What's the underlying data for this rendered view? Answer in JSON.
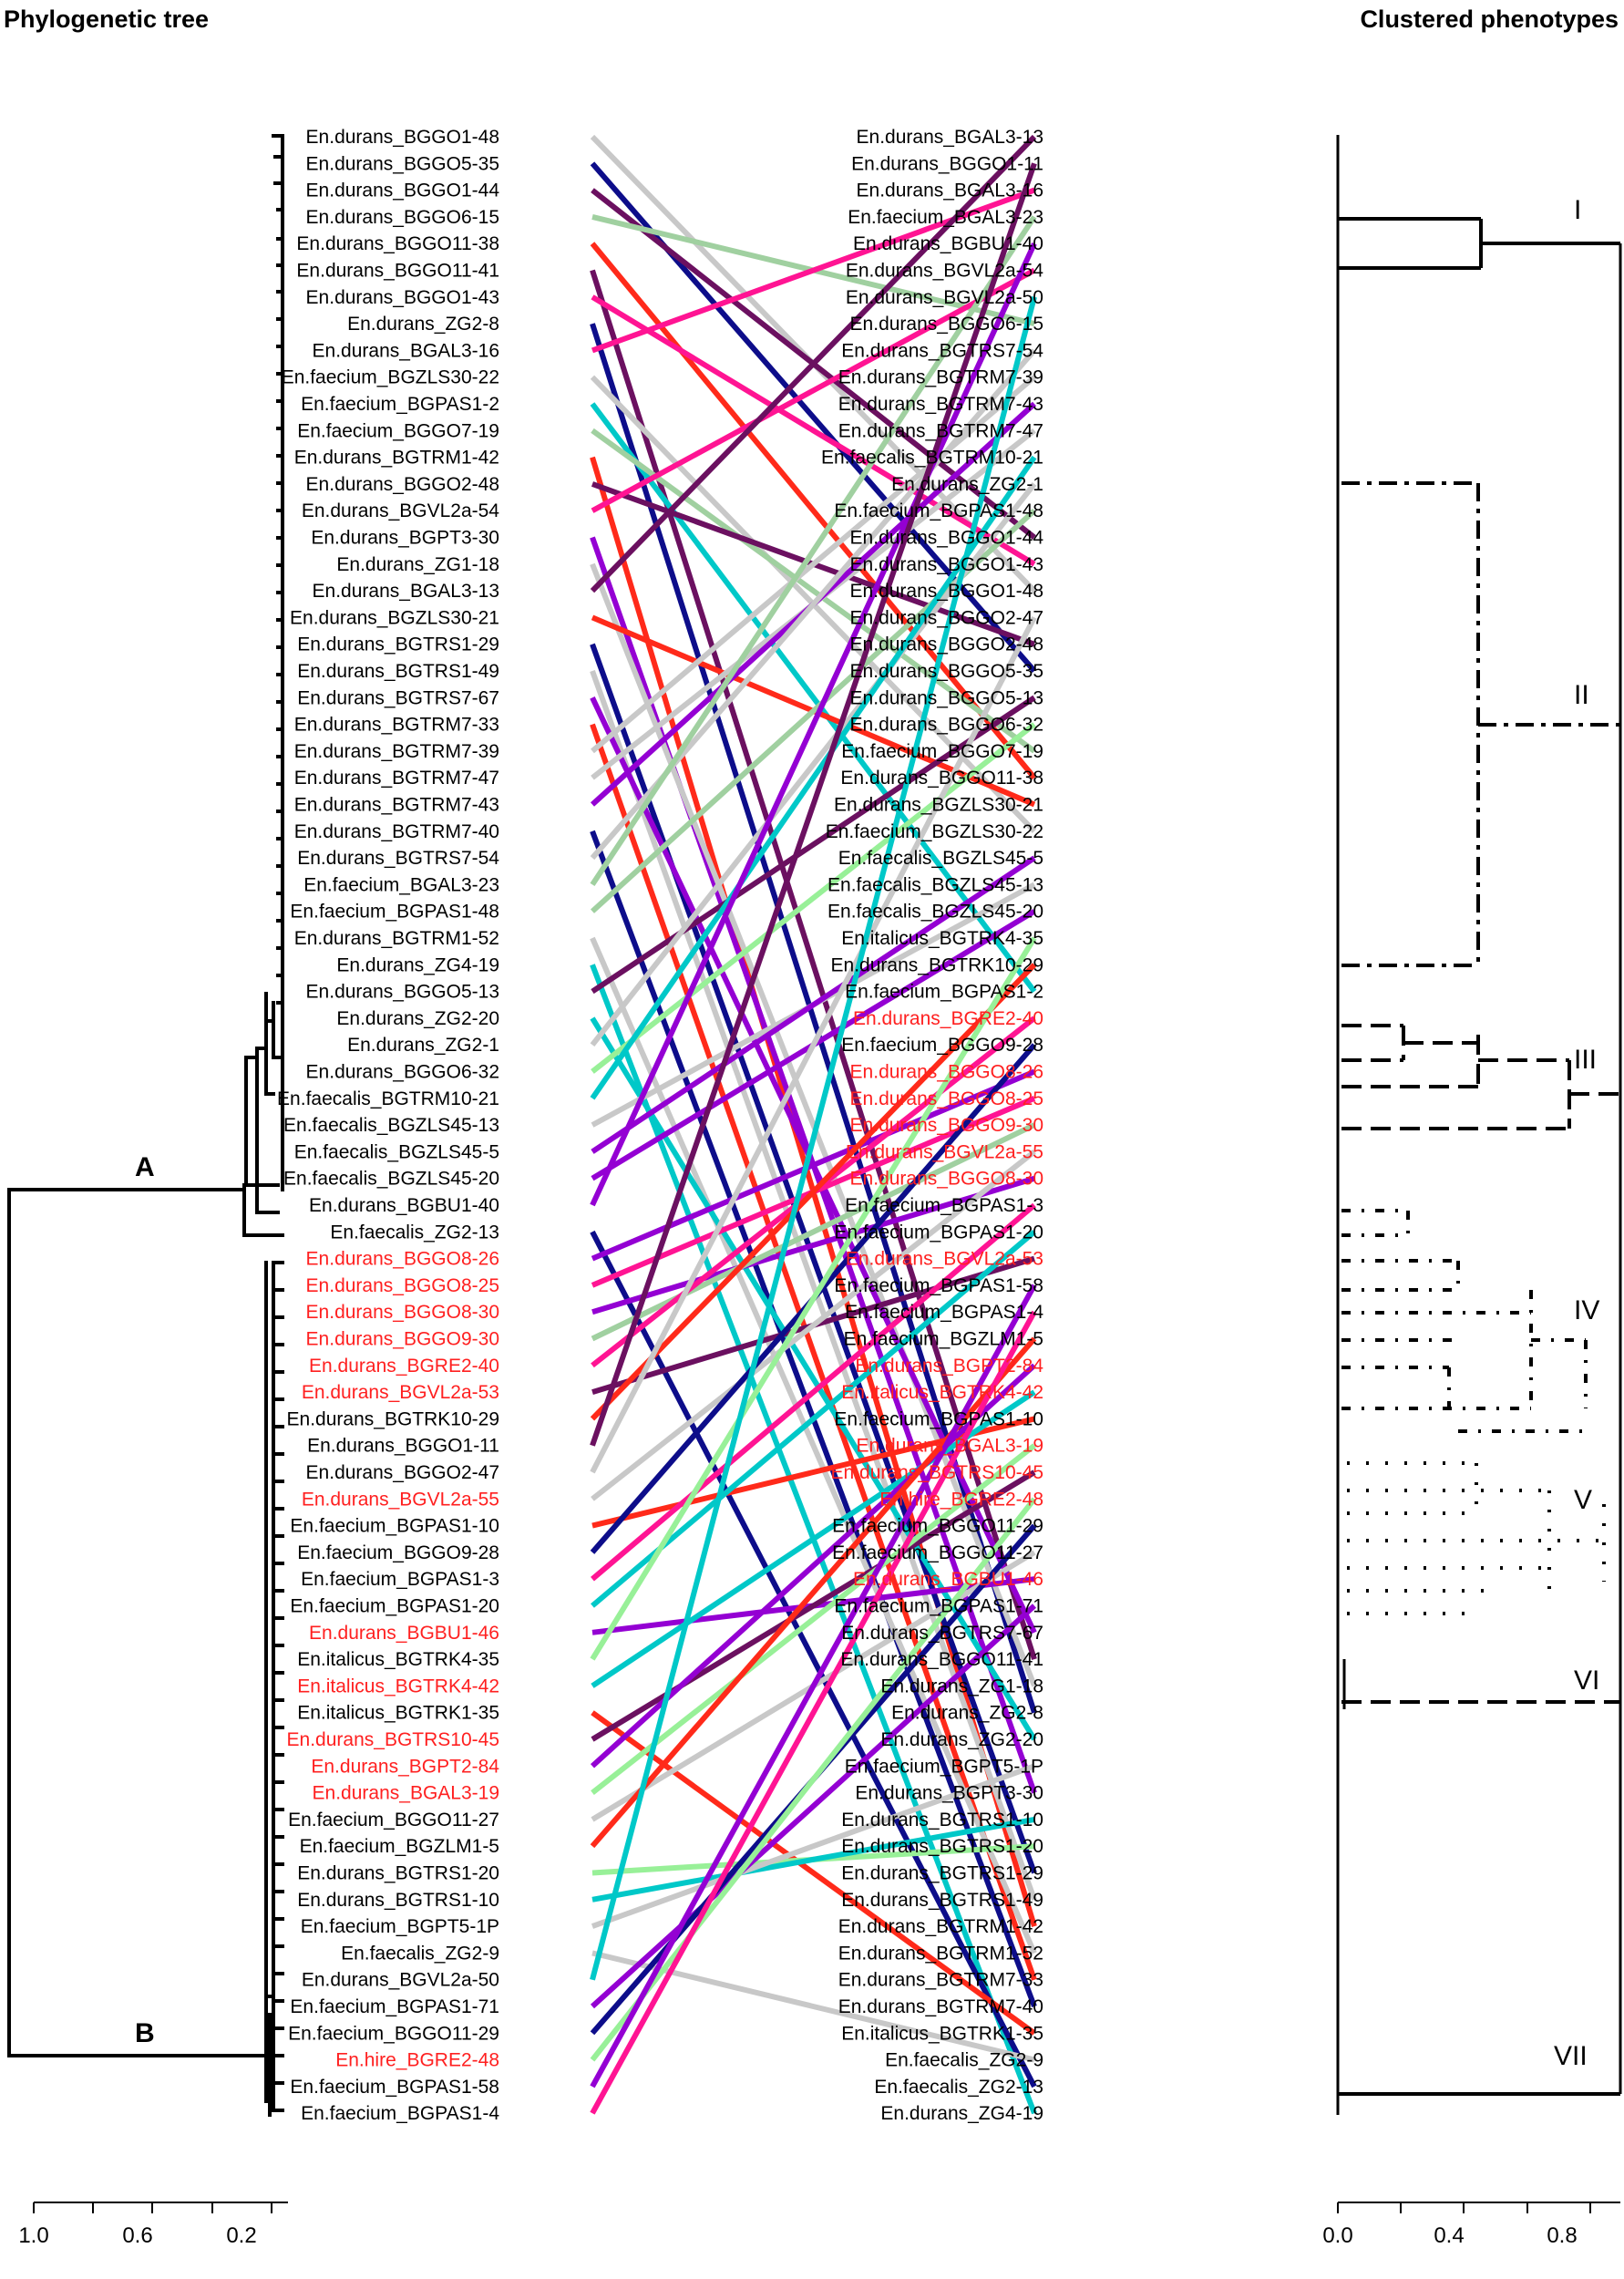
{
  "titles": {
    "left": "Phylogenetic tree",
    "right": "Clustered phenotypes"
  },
  "colors": {
    "normal": "#000000",
    "highlight": "#ff2020",
    "lines": [
      "#0d0d8a",
      "#a0d0a0",
      "#6b1060",
      "#00c8c8",
      "#ff1493",
      "#9400d3",
      "#98f098",
      "#ff2a1a",
      "#c8c8c8"
    ]
  },
  "left_tree": {
    "leaves": [
      {
        "label": "En.durans_BGGO1-48",
        "red": false
      },
      {
        "label": "En.durans_BGGO5-35",
        "red": false
      },
      {
        "label": "En.durans_BGGO1-44",
        "red": false
      },
      {
        "label": "En.durans_BGGO6-15",
        "red": false
      },
      {
        "label": "En.durans_BGGO11-38",
        "red": false
      },
      {
        "label": "En.durans_BGGO11-41",
        "red": false
      },
      {
        "label": "En.durans_BGGO1-43",
        "red": false
      },
      {
        "label": "En.durans_ZG2-8",
        "red": false
      },
      {
        "label": "En.durans_BGAL3-16",
        "red": false
      },
      {
        "label": "En.faecium_BGZLS30-22",
        "red": false
      },
      {
        "label": "En.faecium_BGPAS1-2",
        "red": false
      },
      {
        "label": "En.faecium_BGGO7-19",
        "red": false
      },
      {
        "label": "En.durans_BGTRM1-42",
        "red": false
      },
      {
        "label": "En.durans_BGGO2-48",
        "red": false
      },
      {
        "label": "En.durans_BGVL2a-54",
        "red": false
      },
      {
        "label": "En.durans_BGPT3-30",
        "red": false
      },
      {
        "label": "En.durans_ZG1-18",
        "red": false
      },
      {
        "label": "En.durans_BGAL3-13",
        "red": false
      },
      {
        "label": "En.durans_BGZLS30-21",
        "red": false
      },
      {
        "label": "En.durans_BGTRS1-29",
        "red": false
      },
      {
        "label": "En.durans_BGTRS1-49",
        "red": false
      },
      {
        "label": "En.durans_BGTRS7-67",
        "red": false
      },
      {
        "label": "En.durans_BGTRM7-33",
        "red": false
      },
      {
        "label": "En.durans_BGTRM7-39",
        "red": false
      },
      {
        "label": "En.durans_BGTRM7-47",
        "red": false
      },
      {
        "label": "En.durans_BGTRM7-43",
        "red": false
      },
      {
        "label": "En.durans_BGTRM7-40",
        "red": false
      },
      {
        "label": "En.durans_BGTRS7-54",
        "red": false
      },
      {
        "label": "En.faecium_BGAL3-23",
        "red": false
      },
      {
        "label": "En.faecium_BGPAS1-48",
        "red": false
      },
      {
        "label": "En.durans_BGTRM1-52",
        "red": false
      },
      {
        "label": "En.durans_ZG4-19",
        "red": false
      },
      {
        "label": "En.durans_BGGO5-13",
        "red": false
      },
      {
        "label": "En.durans_ZG2-20",
        "red": false
      },
      {
        "label": "En.durans_ZG2-1",
        "red": false
      },
      {
        "label": "En.durans_BGGO6-32",
        "red": false
      },
      {
        "label": "En.faecalis_BGTRM10-21",
        "red": false
      },
      {
        "label": "En.faecalis_BGZLS45-13",
        "red": false
      },
      {
        "label": "En.faecalis_BGZLS45-5",
        "red": false
      },
      {
        "label": "En.faecalis_BGZLS45-20",
        "red": false
      },
      {
        "label": "En.durans_BGBU1-40",
        "red": false
      },
      {
        "label": "En.faecalis_ZG2-13",
        "red": false
      },
      {
        "label": "En.durans_BGGO8-26",
        "red": true
      },
      {
        "label": "En.durans_BGGO8-25",
        "red": true
      },
      {
        "label": "En.durans_BGGO8-30",
        "red": true
      },
      {
        "label": "En.durans_BGGO9-30",
        "red": true
      },
      {
        "label": "En.durans_BGRE2-40",
        "red": true
      },
      {
        "label": "En.durans_BGVL2a-53",
        "red": true
      },
      {
        "label": "En.durans_BGTRK10-29",
        "red": false
      },
      {
        "label": "En.durans_BGGO1-11",
        "red": false
      },
      {
        "label": "En.durans_BGGO2-47",
        "red": false
      },
      {
        "label": "En.durans_BGVL2a-55",
        "red": true
      },
      {
        "label": "En.faecium_BGPAS1-10",
        "red": false
      },
      {
        "label": "En.faecium_BGGO9-28",
        "red": false
      },
      {
        "label": "En.faecium_BGPAS1-3",
        "red": false
      },
      {
        "label": "En.faecium_BGPAS1-20",
        "red": false
      },
      {
        "label": "En.durans_BGBU1-46",
        "red": true
      },
      {
        "label": "En.italicus_BGTRK4-35",
        "red": false
      },
      {
        "label": "En.italicus_BGTRK4-42",
        "red": true
      },
      {
        "label": "En.italicus_BGTRK1-35",
        "red": false
      },
      {
        "label": "En.durans_BGTRS10-45",
        "red": true
      },
      {
        "label": "En.durans_BGPT2-84",
        "red": true
      },
      {
        "label": "En.durans_BGAL3-19",
        "red": true
      },
      {
        "label": "En.faecium_BGGO11-27",
        "red": false
      },
      {
        "label": "En.faecium_BGZLM1-5",
        "red": false
      },
      {
        "label": "En.durans_BGTRS1-20",
        "red": false
      },
      {
        "label": "En.durans_BGTRS1-10",
        "red": false
      },
      {
        "label": "En.faecium_BGPT5-1P",
        "red": false
      },
      {
        "label": "En.faecalis_ZG2-9",
        "red": false
      },
      {
        "label": "En.durans_BGVL2a-50",
        "red": false
      },
      {
        "label": "En.faecium_BGPAS1-71",
        "red": false
      },
      {
        "label": "En.faecium_BGGO11-29",
        "red": false
      },
      {
        "label": "En.hire_BGRE2-48",
        "red": true
      },
      {
        "label": "En.faecium_BGPAS1-58",
        "red": false
      },
      {
        "label": "En.faecium_BGPAS1-4",
        "red": false
      }
    ],
    "clade_labels": [
      "A",
      "B"
    ],
    "axis_ticks": [
      "1.0",
      "0.6",
      "0.2"
    ]
  },
  "right_tree": {
    "leaves": [
      {
        "label": "En.durans_BGAL3-13",
        "red": false
      },
      {
        "label": "En.durans_BGGO1-11",
        "red": false
      },
      {
        "label": "En.durans_BGAL3-16",
        "red": false
      },
      {
        "label": "En.faecium_BGAL3-23",
        "red": false
      },
      {
        "label": "En.durans_BGBU1-40",
        "red": false
      },
      {
        "label": "En.durans_BGVL2a-54",
        "red": false
      },
      {
        "label": "En.durans_BGVL2a-50",
        "red": false
      },
      {
        "label": "En.durans_BGGO6-15",
        "red": false
      },
      {
        "label": "En.durans_BGTRS7-54",
        "red": false
      },
      {
        "label": "En.durans_BGTRM7-39",
        "red": false
      },
      {
        "label": "En.durans_BGTRM7-43",
        "red": false
      },
      {
        "label": "En.durans_BGTRM7-47",
        "red": false
      },
      {
        "label": "En.faecalis_BGTRM10-21",
        "red": false
      },
      {
        "label": "En.durans_ZG2-1",
        "red": false
      },
      {
        "label": "En.faecium_BGPAS1-48",
        "red": false
      },
      {
        "label": "En.durans_BGGO1-44",
        "red": false
      },
      {
        "label": "En.durans_BGGO1-43",
        "red": false
      },
      {
        "label": "En.durans_BGGO1-48",
        "red": false
      },
      {
        "label": "En.durans_BGGO2-47",
        "red": false
      },
      {
        "label": "En.durans_BGGO2-48",
        "red": false
      },
      {
        "label": "En.durans_BGGO5-35",
        "red": false
      },
      {
        "label": "En.durans_BGGO5-13",
        "red": false
      },
      {
        "label": "En.durans_BGGO6-32",
        "red": false
      },
      {
        "label": "En.faecium_BGGO7-19",
        "red": false
      },
      {
        "label": "En.durans_BGGO11-38",
        "red": false
      },
      {
        "label": "En.durans_BGZLS30-21",
        "red": false
      },
      {
        "label": "En.faecium_BGZLS30-22",
        "red": false
      },
      {
        "label": "En.faecalis_BGZLS45-5",
        "red": false
      },
      {
        "label": "En.faecalis_BGZLS45-13",
        "red": false
      },
      {
        "label": "En.faecalis_BGZLS45-20",
        "red": false
      },
      {
        "label": "En.italicus_BGTRK4-35",
        "red": false
      },
      {
        "label": "En.durans_BGTRK10-29",
        "red": false
      },
      {
        "label": "En.faecium_BGPAS1-2",
        "red": false
      },
      {
        "label": "En.durans_BGRE2-40",
        "red": true
      },
      {
        "label": "En.faecium_BGGO9-28",
        "red": false
      },
      {
        "label": "En.durans_BGGO8-26",
        "red": true
      },
      {
        "label": "En.durans_BGGO8-25",
        "red": true
      },
      {
        "label": "En.durans_BGGO9-30",
        "red": true
      },
      {
        "label": "En.durans_BGVL2a-55",
        "red": true
      },
      {
        "label": "En.durans_BGGO8-30",
        "red": true
      },
      {
        "label": "En.faecium_BGPAS1-3",
        "red": false
      },
      {
        "label": "En.faecium_BGPAS1-20",
        "red": false
      },
      {
        "label": "En.durans_BGVL2a-53",
        "red": true
      },
      {
        "label": "En.faecium_BGPAS1-58",
        "red": false
      },
      {
        "label": "En.faecium_BGPAS1-4",
        "red": false
      },
      {
        "label": "En.faecium_BGZLM1-5",
        "red": false
      },
      {
        "label": "En.durans_BGPT2-84",
        "red": true
      },
      {
        "label": "En.italicus_BGTRK4-42",
        "red": true
      },
      {
        "label": "En.faecium_BGPAS1-10",
        "red": false
      },
      {
        "label": "En.durans_BGAL3-19",
        "red": true
      },
      {
        "label": "En.durans_BGTRS10-45",
        "red": true
      },
      {
        "label": "En.hire_BGRE2-48",
        "red": true
      },
      {
        "label": "En.faecium_BGGO11-29",
        "red": false
      },
      {
        "label": "En.faecium_BGGO11-27",
        "red": false
      },
      {
        "label": "En.durans_BGBU1-46",
        "red": true
      },
      {
        "label": "En.faecium_BGPAS1-71",
        "red": false
      },
      {
        "label": "En.durans_BGTRS7-67",
        "red": false
      },
      {
        "label": "En.durans_BGGO11-41",
        "red": false
      },
      {
        "label": "En.durans_ZG1-18",
        "red": false
      },
      {
        "label": "En.durans_ZG2-8",
        "red": false
      },
      {
        "label": "En.durans_ZG2-20",
        "red": false
      },
      {
        "label": "En.faecium_BGPT5-1P",
        "red": false
      },
      {
        "label": "En.durans_BGPT3-30",
        "red": false
      },
      {
        "label": "En.durans_BGTRS1-10",
        "red": false
      },
      {
        "label": "En.durans_BGTRS1-20",
        "red": false
      },
      {
        "label": "En.durans_BGTRS1-29",
        "red": false
      },
      {
        "label": "En.durans_BGTRS1-49",
        "red": false
      },
      {
        "label": "En.durans_BGTRM1-42",
        "red": false
      },
      {
        "label": "En.durans_BGTRM1-52",
        "red": false
      },
      {
        "label": "En.durans_BGTRM7-33",
        "red": false
      },
      {
        "label": "En.durans_BGTRM7-40",
        "red": false
      },
      {
        "label": "En.italicus_BGTRK1-35",
        "red": false
      },
      {
        "label": "En.faecalis_ZG2-9",
        "red": false
      },
      {
        "label": "En.faecalis_ZG2-13",
        "red": false
      },
      {
        "label": "En.durans_ZG4-19",
        "red": false
      }
    ],
    "cluster_labels": [
      "I",
      "II",
      "III",
      "IV",
      "V",
      "VI",
      "VII"
    ],
    "axis_ticks": [
      "0.0",
      "0.4",
      "0.8"
    ]
  }
}
